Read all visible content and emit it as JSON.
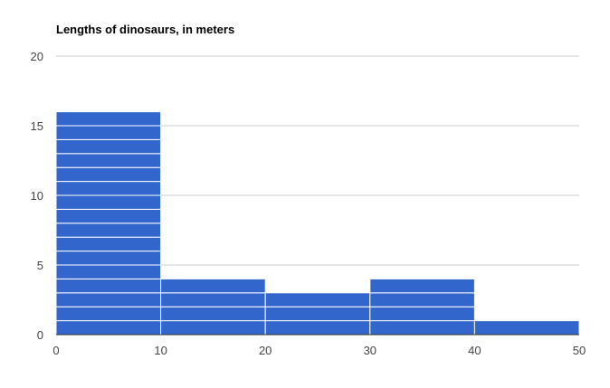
{
  "chart_data": {
    "type": "bar",
    "title": "Lengths of dinosaurs, in meters",
    "xlabel": "",
    "ylabel": "",
    "histogram": true,
    "bins": [
      {
        "start": 0,
        "end": 10,
        "count": 16
      },
      {
        "start": 10,
        "end": 20,
        "count": 4
      },
      {
        "start": 20,
        "end": 30,
        "count": 3
      },
      {
        "start": 30,
        "end": 40,
        "count": 4
      },
      {
        "start": 40,
        "end": 50,
        "count": 1
      }
    ],
    "xlim": [
      0,
      50
    ],
    "ylim": [
      0,
      20
    ],
    "x_ticks": [
      "0",
      "10",
      "20",
      "30",
      "40",
      "50"
    ],
    "y_ticks": [
      "0",
      "5",
      "10",
      "15",
      "20"
    ],
    "grid": true,
    "legend": "none",
    "colors": {
      "bar": "#3366cc",
      "bar_divider": "#ffffff",
      "grid": "#cccccc",
      "baseline": "#333333"
    }
  }
}
